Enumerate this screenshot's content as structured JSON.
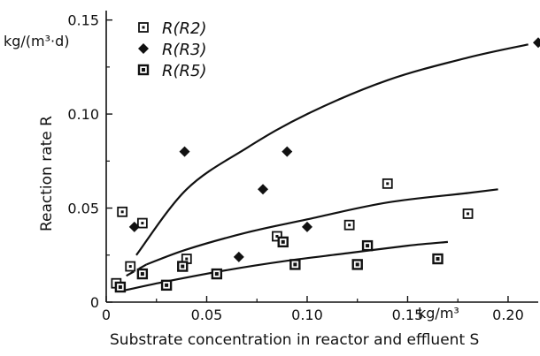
{
  "chart_data": {
    "type": "scatter",
    "xlabel": "Substrate concentration in reactor and effluent S",
    "ylabel": "Reaction rate R",
    "x_unit": "kg/m³",
    "y_unit_main": "kg/(m³·d)",
    "xlim": [
      0,
      0.215
    ],
    "ylim": [
      0,
      0.155
    ],
    "x_ticks": [
      {
        "value": 0,
        "label": "0"
      },
      {
        "value": 0.05,
        "label": "0.05"
      },
      {
        "value": 0.1,
        "label": "0.10"
      },
      {
        "value": 0.15,
        "label": "0.15"
      },
      {
        "value": 0.2,
        "label": "0.20"
      }
    ],
    "y_ticks": [
      {
        "value": 0,
        "label": "0"
      },
      {
        "value": 0.05,
        "label": "0.05"
      },
      {
        "value": 0.1,
        "label": "0.10"
      },
      {
        "value": 0.15,
        "label": "0.15"
      }
    ],
    "legend_position": "top-left",
    "series": [
      {
        "name": "R(R2)",
        "marker": "open-square",
        "points": [
          {
            "x": 0.005,
            "y": 0.01
          },
          {
            "x": 0.008,
            "y": 0.048
          },
          {
            "x": 0.012,
            "y": 0.019
          },
          {
            "x": 0.018,
            "y": 0.042
          },
          {
            "x": 0.04,
            "y": 0.023
          },
          {
            "x": 0.085,
            "y": 0.035
          },
          {
            "x": 0.121,
            "y": 0.041
          },
          {
            "x": 0.14,
            "y": 0.063
          },
          {
            "x": 0.18,
            "y": 0.047
          }
        ]
      },
      {
        "name": "R(R3)",
        "marker": "filled-diamond",
        "points": [
          {
            "x": 0.014,
            "y": 0.04
          },
          {
            "x": 0.039,
            "y": 0.08
          },
          {
            "x": 0.066,
            "y": 0.024
          },
          {
            "x": 0.078,
            "y": 0.06
          },
          {
            "x": 0.09,
            "y": 0.08
          },
          {
            "x": 0.1,
            "y": 0.04
          },
          {
            "x": 0.215,
            "y": 0.138
          }
        ]
      },
      {
        "name": "R(R5)",
        "marker": "dotted-square",
        "points": [
          {
            "x": 0.007,
            "y": 0.008
          },
          {
            "x": 0.018,
            "y": 0.015
          },
          {
            "x": 0.03,
            "y": 0.009
          },
          {
            "x": 0.038,
            "y": 0.019
          },
          {
            "x": 0.055,
            "y": 0.015
          },
          {
            "x": 0.088,
            "y": 0.032
          },
          {
            "x": 0.094,
            "y": 0.02
          },
          {
            "x": 0.125,
            "y": 0.02
          },
          {
            "x": 0.13,
            "y": 0.03
          },
          {
            "x": 0.165,
            "y": 0.023
          }
        ]
      }
    ],
    "curves": [
      {
        "dashed": false,
        "points": [
          [
            0.015,
            0.025
          ],
          [
            0.04,
            0.06
          ],
          [
            0.07,
            0.082
          ],
          [
            0.1,
            0.1
          ],
          [
            0.14,
            0.118
          ],
          [
            0.18,
            0.13
          ],
          [
            0.21,
            0.137
          ]
        ]
      },
      {
        "dashed": true,
        "points": [
          [
            0.01,
            0.014
          ],
          [
            0.02,
            0.02
          ]
        ]
      },
      {
        "dashed": false,
        "points": [
          [
            0.02,
            0.02
          ],
          [
            0.04,
            0.028
          ],
          [
            0.07,
            0.037
          ],
          [
            0.1,
            0.044
          ],
          [
            0.14,
            0.053
          ],
          [
            0.18,
            0.058
          ],
          [
            0.195,
            0.06
          ]
        ]
      },
      {
        "dashed": false,
        "points": [
          [
            0.008,
            0.006
          ],
          [
            0.03,
            0.011
          ],
          [
            0.06,
            0.017
          ],
          [
            0.09,
            0.022
          ],
          [
            0.12,
            0.026
          ],
          [
            0.15,
            0.03
          ],
          [
            0.17,
            0.032
          ]
        ]
      }
    ]
  }
}
